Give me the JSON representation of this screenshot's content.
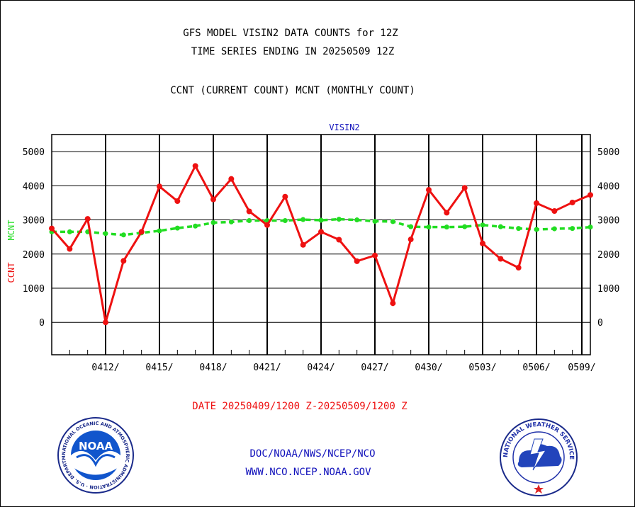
{
  "header": {
    "title_line1": "GFS MODEL VISIN2 DATA COUNTS for 12Z",
    "title_line2": "TIME SERIES ENDING IN 20250509 12Z",
    "legend_line": "CCNT (CURRENT COUNT) MCNT (MONTHLY COUNT)"
  },
  "footer": {
    "date_range": "DATE 20250409/1200 Z-20250509/1200 Z",
    "org_path": "DOC/NOAA/NWS/NCEP/NCO",
    "website": "WWW.NCO.NCEP.NOAA.GOV"
  },
  "logos": {
    "noaa": {
      "center_text": "NOAA",
      "ring_text": "NATIONAL OCEANIC AND ATMOSPHERIC ADMINISTRATION · U.S. DEPARTMENT OF COMMERCE"
    },
    "nws": {
      "ring_text": "NATIONAL WEATHER SERVICE"
    }
  },
  "colors": {
    "ccnt": "#ee1111",
    "mcnt": "#22dd22",
    "blue_text": "#1111bb",
    "red_text": "#ee1111"
  },
  "chart_data": {
    "type": "line",
    "title": "VISIN2",
    "ylabel_left_1": "CCNT",
    "ylabel_left_2": "MCNT",
    "ylim": [
      -950,
      5500
    ],
    "yticks": [
      0,
      1000,
      2000,
      3000,
      4000,
      5000
    ],
    "xlim": [
      0,
      30
    ],
    "xticks": [
      {
        "x": 3,
        "label": "0412/"
      },
      {
        "x": 6,
        "label": "0415/"
      },
      {
        "x": 9,
        "label": "0418/"
      },
      {
        "x": 12,
        "label": "0421/"
      },
      {
        "x": 15,
        "label": "0424/"
      },
      {
        "x": 18,
        "label": "0427/"
      },
      {
        "x": 21,
        "label": "0430/"
      },
      {
        "x": 24,
        "label": "0503/"
      },
      {
        "x": 27,
        "label": "0506/"
      },
      {
        "x": 30,
        "label": "0509/"
      }
    ],
    "grid": true,
    "series": [
      {
        "name": "CCNT",
        "style": "solid",
        "values": [
          2750,
          2150,
          3030,
          0,
          1800,
          2650,
          3980,
          3550,
          4580,
          3600,
          4200,
          3250,
          2850,
          3680,
          2270,
          2650,
          2420,
          1790,
          1960,
          560,
          2430,
          3880,
          3210,
          3940,
          2310,
          1860,
          1600,
          3490,
          3260,
          3510,
          3730
        ]
      },
      {
        "name": "MCNT",
        "style": "dashed",
        "values": [
          2650,
          2650,
          2650,
          2600,
          2560,
          2620,
          2680,
          2760,
          2820,
          2920,
          2940,
          2980,
          2980,
          2980,
          3010,
          2990,
          3020,
          3000,
          2960,
          2950,
          2800,
          2790,
          2790,
          2800,
          2850,
          2800,
          2750,
          2720,
          2740,
          2750,
          2790
        ]
      }
    ]
  }
}
